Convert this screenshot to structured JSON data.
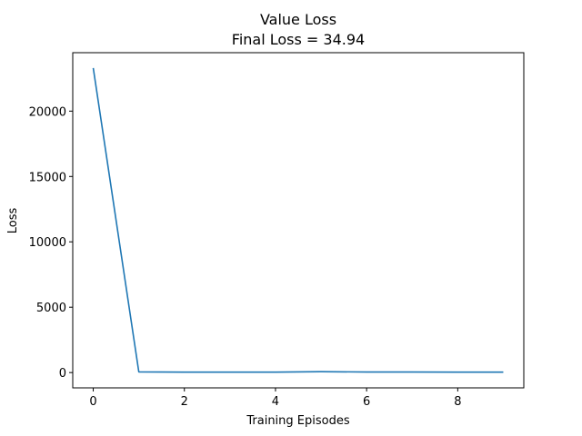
{
  "chart_data": {
    "type": "line",
    "title": "Value Loss",
    "subtitle": "Final Loss = 34.94",
    "xlabel": "Training Episodes",
    "ylabel": "Loss",
    "x": [
      0,
      1,
      2,
      3,
      4,
      5,
      6,
      7,
      8,
      9
    ],
    "series": [
      {
        "color": "#1f77b4",
        "values": [
          23300,
          50,
          30,
          35,
          30,
          65,
          45,
          40,
          35,
          34.94
        ]
      }
    ],
    "xlim": [
      -0.45,
      9.45
    ],
    "ylim": [
      -1170,
      24470
    ],
    "xticks": [
      0,
      2,
      4,
      6,
      8
    ],
    "xtick_labels": [
      "0",
      "2",
      "4",
      "6",
      "8"
    ],
    "yticks": [
      0,
      5000,
      10000,
      15000,
      20000
    ],
    "ytick_labels": [
      "0",
      "5000",
      "10000",
      "15000",
      "20000"
    ],
    "grid": false,
    "legend": "none"
  }
}
